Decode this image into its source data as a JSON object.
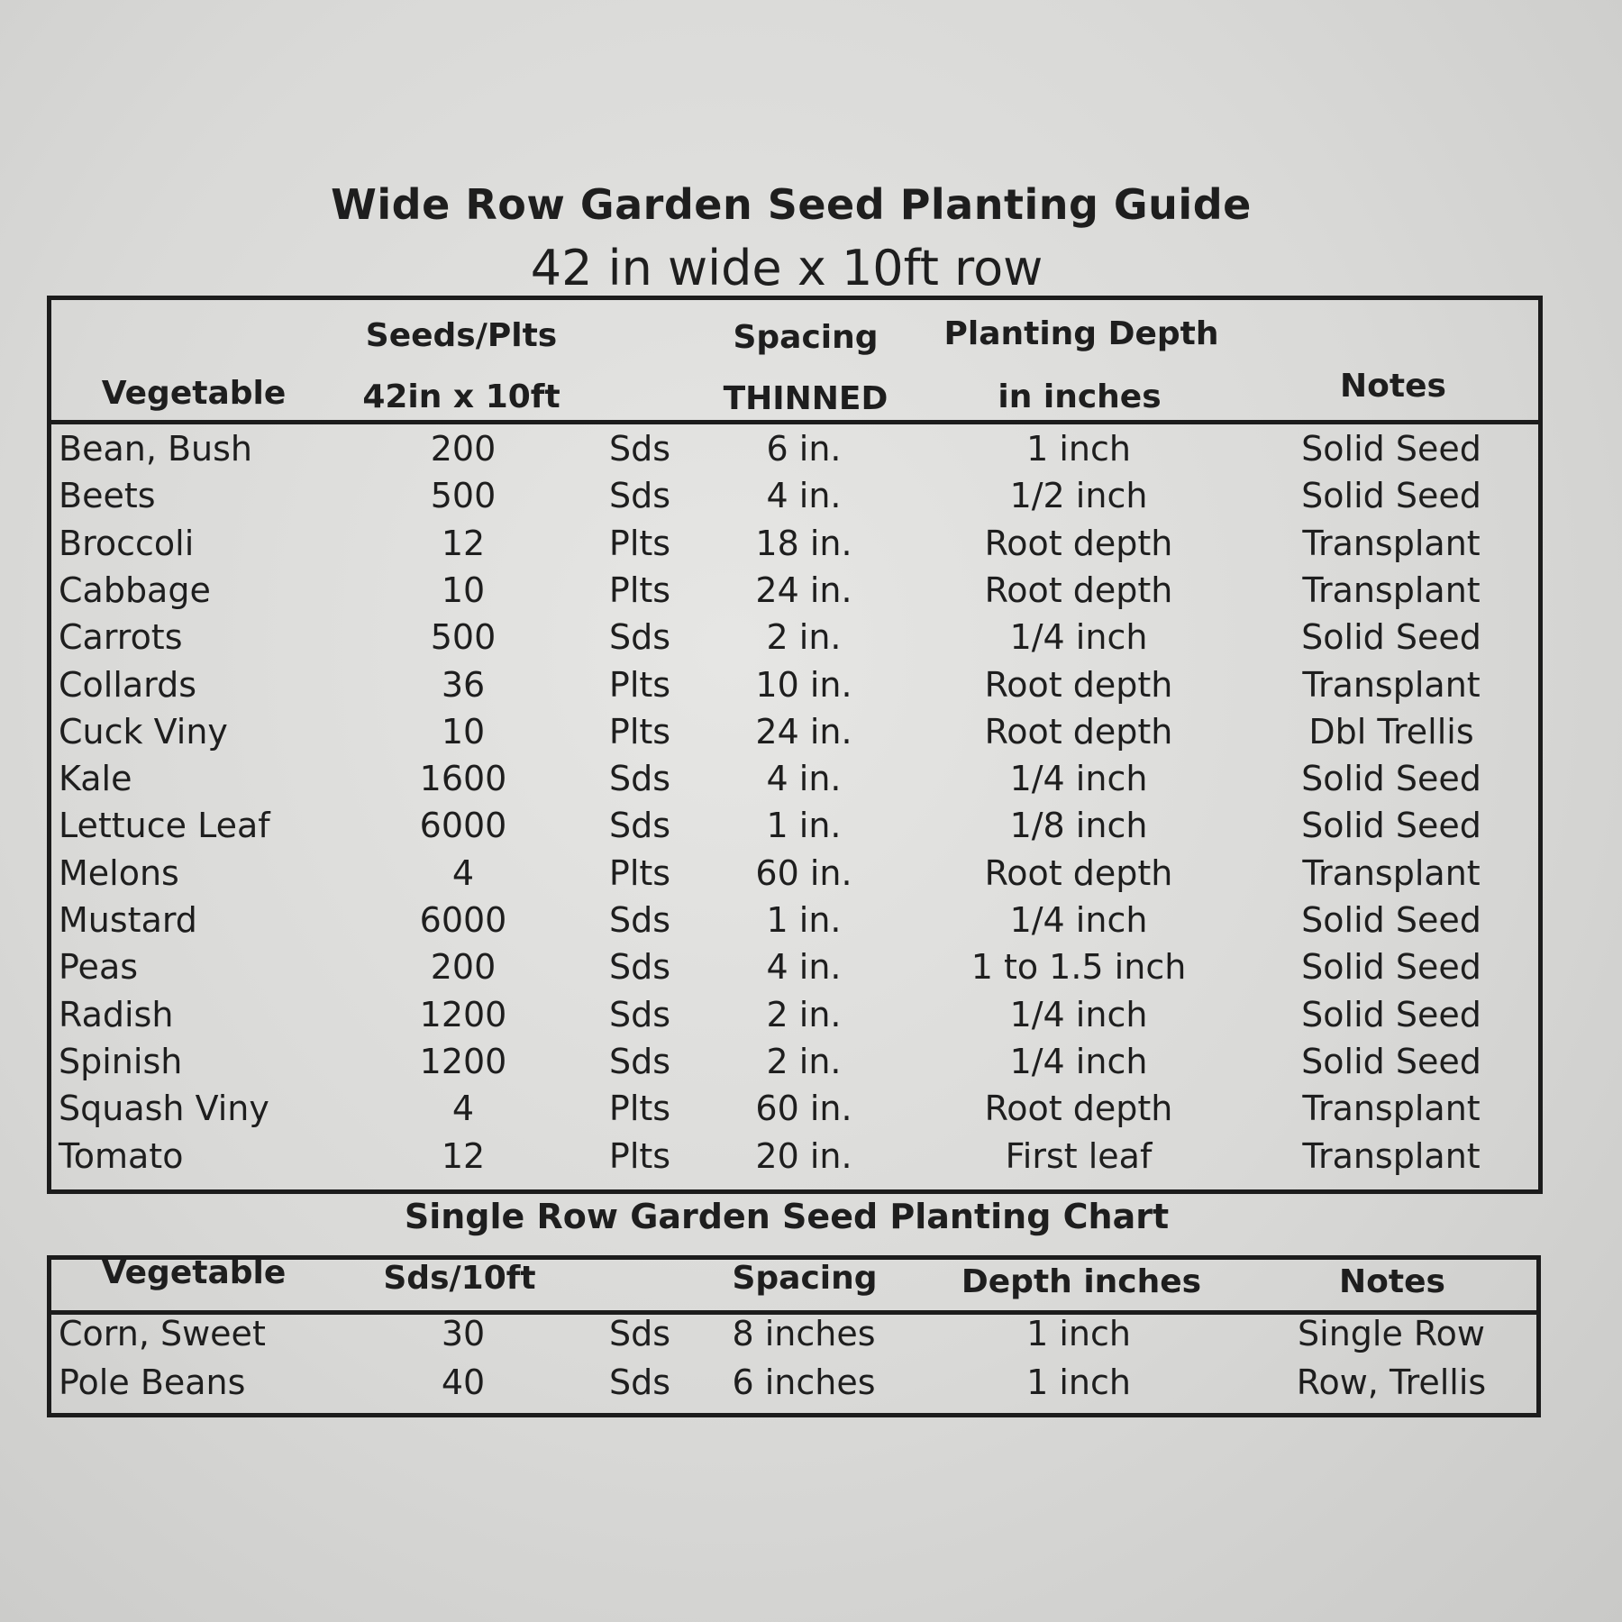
{
  "title": "Wide Row Garden Seed Planting Guide",
  "subtitle": "42 in wide x 10ft row",
  "wide_table": {
    "headers": {
      "vegetable": "Vegetable",
      "seeds_line1": "Seeds/Plts",
      "seeds_line2": "42in x 10ft",
      "spacing_line1": "Spacing",
      "spacing_line2": "THINNED",
      "depth_line1": "Planting Depth",
      "depth_line2": "in inches",
      "notes": "Notes"
    },
    "rows": [
      [
        "Bean, Bush",
        "200",
        "Sds",
        "6 in.",
        "1 inch",
        "Solid Seed"
      ],
      [
        "Beets",
        "500",
        "Sds",
        "4 in.",
        "1/2 inch",
        "Solid Seed"
      ],
      [
        "Broccoli",
        "12",
        "Plts",
        "18 in.",
        "Root depth",
        "Transplant"
      ],
      [
        "Cabbage",
        "10",
        "Plts",
        "24 in.",
        "Root depth",
        "Transplant"
      ],
      [
        "Carrots",
        "500",
        "Sds",
        "2 in.",
        "1/4 inch",
        "Solid Seed"
      ],
      [
        "Collards",
        "36",
        "Plts",
        "10 in.",
        "Root depth",
        "Transplant"
      ],
      [
        "Cuck  Viny",
        "10",
        "Plts",
        "24 in.",
        "Root depth",
        "Dbl Trellis"
      ],
      [
        "Kale",
        "1600",
        "Sds",
        "4  in.",
        "1/4 inch",
        "Solid Seed"
      ],
      [
        "Lettuce Leaf",
        "6000",
        "Sds",
        "1 in.",
        "1/8 inch",
        "Solid Seed"
      ],
      [
        "Melons",
        "4",
        "Plts",
        "60 in.",
        "Root depth",
        "Transplant"
      ],
      [
        "Mustard",
        "6000",
        "Sds",
        "1 in.",
        "1/4 inch",
        "Solid Seed"
      ],
      [
        "Peas",
        "200",
        "Sds",
        "4 in.",
        "1 to 1.5 inch",
        "Solid Seed"
      ],
      [
        "Radish",
        "1200",
        "Sds",
        "2  in.",
        "1/4 inch",
        "Solid Seed"
      ],
      [
        "Spinish",
        "1200",
        "Sds",
        "2  in.",
        "1/4 inch",
        "Solid Seed"
      ],
      [
        "Squash Viny",
        "4",
        "Plts",
        "60 in.",
        "Root depth",
        "Transplant"
      ],
      [
        "Tomato",
        "12",
        "Plts",
        "20 in.",
        "First leaf",
        "Transplant"
      ]
    ]
  },
  "single_title": "Single Row Garden Seed Planting Chart",
  "single_table": {
    "headers": {
      "vegetable": "Vegetable",
      "seeds": "Sds/10ft",
      "spacing": "Spacing",
      "depth": "Depth inches",
      "notes": "Notes"
    },
    "rows": [
      [
        "Corn, Sweet",
        "30",
        "Sds",
        "8 inches",
        "1 inch",
        "Single Row"
      ],
      [
        "Pole Beans",
        "40",
        "Sds",
        "6 inches",
        "1 inch",
        "Row, Trellis"
      ]
    ]
  }
}
